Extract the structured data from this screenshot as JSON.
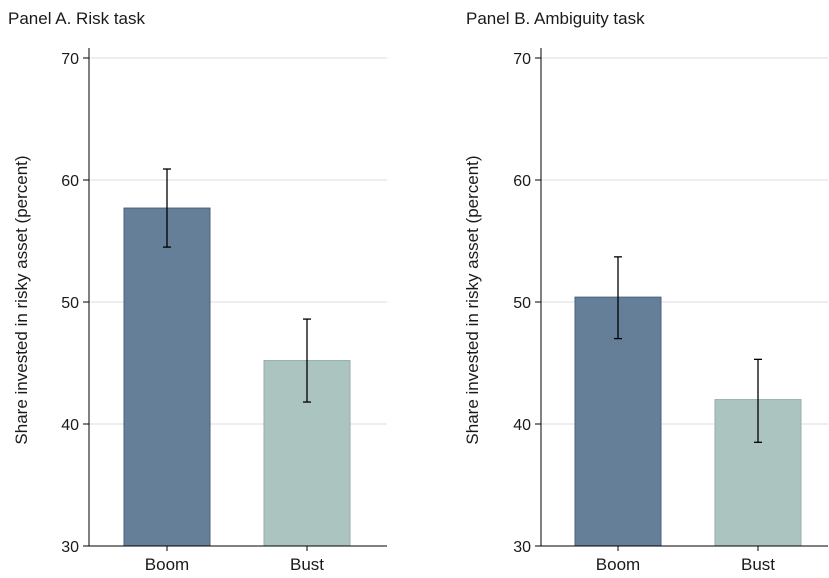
{
  "chart_data": [
    {
      "type": "bar",
      "title": "Panel A. Risk task",
      "ylabel": "Share invested in risky asset (percent)",
      "xlabel": "",
      "categories": [
        "Boom",
        "Bust"
      ],
      "values": [
        57.7,
        45.2
      ],
      "error_low": [
        54.5,
        41.8
      ],
      "error_high": [
        60.9,
        48.6
      ],
      "colors": [
        "#647f97",
        "#abc4c0"
      ],
      "ylim": [
        30,
        70
      ],
      "yticks": [
        30,
        40,
        50,
        60,
        70
      ],
      "grid": true
    },
    {
      "type": "bar",
      "title": "Panel B. Ambiguity task",
      "ylabel": "Share invested in risky asset (percent)",
      "xlabel": "",
      "categories": [
        "Boom",
        "Bust"
      ],
      "values": [
        50.4,
        42.0
      ],
      "error_low": [
        47.0,
        38.5
      ],
      "error_high": [
        53.7,
        45.3
      ],
      "colors": [
        "#647f97",
        "#abc4c0"
      ],
      "ylim": [
        30,
        70
      ],
      "yticks": [
        30,
        40,
        50,
        60,
        70
      ],
      "grid": true
    }
  ]
}
